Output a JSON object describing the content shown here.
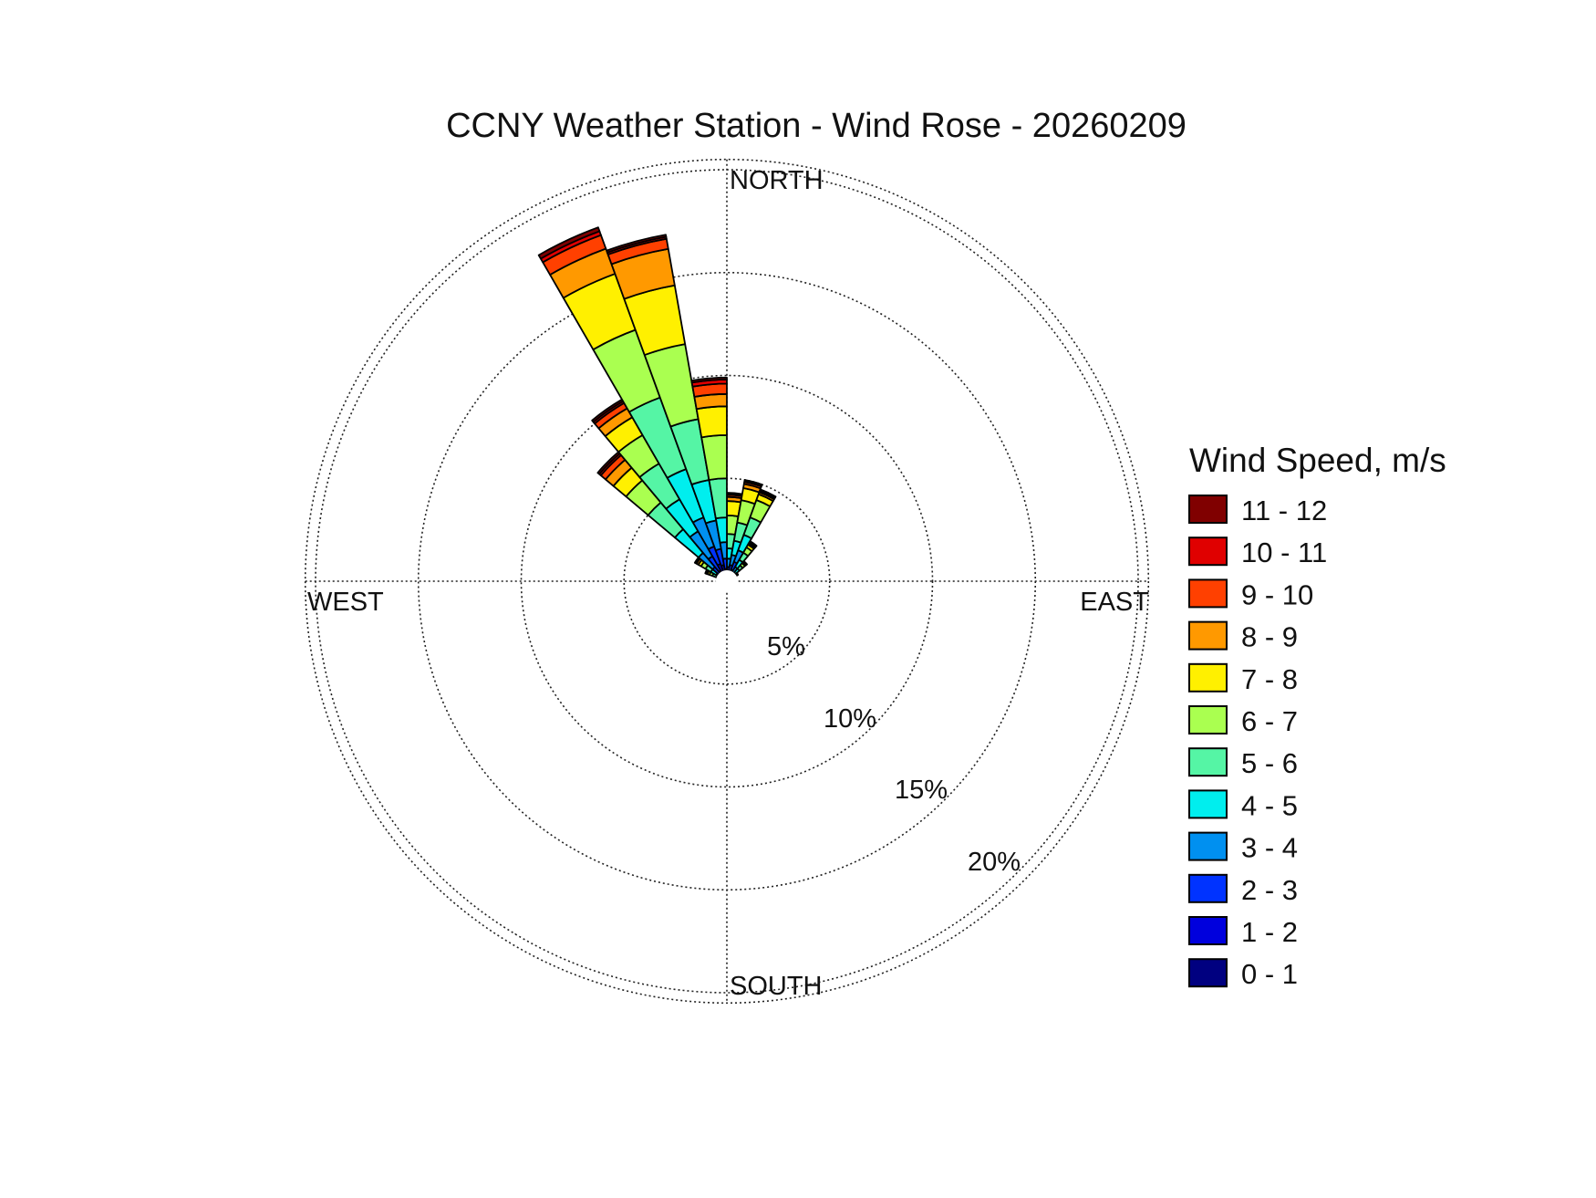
{
  "chart_data": {
    "type": "wind_rose",
    "title": "CCNY Weather Station - Wind Rose - 20260209",
    "direction_labels": [
      "NORTH",
      "EAST",
      "SOUTH",
      "WEST"
    ],
    "radial_ticks": [
      5,
      10,
      15,
      20
    ],
    "radial_tick_labels": [
      "5%",
      "10%",
      "15%",
      "20%"
    ],
    "radial_max": 20.5,
    "legend": {
      "title": "Wind Speed, m/s",
      "placement": "right",
      "bins": [
        {
          "label": "0 - 1",
          "color": "#000080"
        },
        {
          "label": "1 - 2",
          "color": "#0000DD"
        },
        {
          "label": "2 - 3",
          "color": "#0033FF"
        },
        {
          "label": "3 - 4",
          "color": "#0090F0"
        },
        {
          "label": "4 - 5",
          "color": "#00EEEE"
        },
        {
          "label": "5 - 6",
          "color": "#55F5A5"
        },
        {
          "label": "6 - 7",
          "color": "#AAFF50"
        },
        {
          "label": "7 - 8",
          "color": "#FFF000"
        },
        {
          "label": "8 - 9",
          "color": "#FF9900"
        },
        {
          "label": "9 - 10",
          "color": "#FF4000"
        },
        {
          "label": "10 - 11",
          "color": "#E00000"
        },
        {
          "label": "11 - 12",
          "color": "#800000"
        }
      ]
    },
    "sector_width_deg": 10,
    "sectors": [
      {
        "direction_deg": 5,
        "cumulative_pct": [
          0.2,
          0.4,
          0.7,
          1.1,
          1.6,
          2.3,
          3.2,
          3.9,
          4.1,
          4.2,
          4.25,
          4.3
        ]
      },
      {
        "direction_deg": 15,
        "cumulative_pct": [
          0.2,
          0.5,
          0.8,
          1.3,
          2.0,
          2.9,
          4.0,
          4.6,
          4.8,
          4.9,
          4.95,
          5.0
        ]
      },
      {
        "direction_deg": 25,
        "cumulative_pct": [
          0.3,
          0.6,
          1.0,
          1.6,
          2.4,
          3.3,
          4.2,
          4.5,
          4.6,
          4.65,
          4.7,
          4.75
        ]
      },
      {
        "direction_deg": 35,
        "cumulative_pct": [
          0.15,
          0.3,
          0.5,
          0.8,
          1.2,
          1.6,
          1.9,
          2.05,
          2.1,
          2.15,
          2.2,
          2.25
        ]
      },
      {
        "direction_deg": 45,
        "cumulative_pct": [
          0.1,
          0.2,
          0.35,
          0.55,
          0.8,
          1.0,
          1.15,
          1.2,
          1.22,
          1.24,
          1.26,
          1.28
        ]
      },
      {
        "direction_deg": 55,
        "cumulative_pct": [
          0.05,
          0.1,
          0.2,
          0.3,
          0.4,
          0.5,
          0.55,
          0.58,
          0.6,
          0.61,
          0.62,
          0.63
        ]
      },
      {
        "direction_deg": 65,
        "cumulative_pct": [
          0.03,
          0.06,
          0.1,
          0.15,
          0.2,
          0.25,
          0.28,
          0.3,
          0.31,
          0.32,
          0.33,
          0.34
        ]
      },
      {
        "direction_deg": 75,
        "cumulative_pct": [
          0.02,
          0.04,
          0.06,
          0.09,
          0.12,
          0.15,
          0.17,
          0.18,
          0.19,
          0.2,
          0.21,
          0.22
        ]
      },
      {
        "direction_deg": 85,
        "cumulative_pct": [
          0.02,
          0.03,
          0.05,
          0.07,
          0.09,
          0.11,
          0.12,
          0.13,
          0.14,
          0.15,
          0.16,
          0.17
        ]
      },
      {
        "direction_deg": 95,
        "cumulative_pct": [
          0.02,
          0.03,
          0.04,
          0.06,
          0.08,
          0.1,
          0.11,
          0.12,
          0.13,
          0.14,
          0.15,
          0.16
        ]
      },
      {
        "direction_deg": 105,
        "cumulative_pct": [
          0.02,
          0.03,
          0.04,
          0.05,
          0.07,
          0.08,
          0.09,
          0.1,
          0.11,
          0.12,
          0.13,
          0.14
        ]
      },
      {
        "direction_deg": 115,
        "cumulative_pct": [
          0.02,
          0.03,
          0.04,
          0.05,
          0.06,
          0.07,
          0.08,
          0.09,
          0.1,
          0.11,
          0.12,
          0.13
        ]
      },
      {
        "direction_deg": 125,
        "cumulative_pct": [
          0.02,
          0.03,
          0.04,
          0.05,
          0.06,
          0.07,
          0.08,
          0.09,
          0.1,
          0.11,
          0.12,
          0.13
        ]
      },
      {
        "direction_deg": 135,
        "cumulative_pct": [
          0.02,
          0.03,
          0.04,
          0.05,
          0.06,
          0.07,
          0.08,
          0.09,
          0.1,
          0.11,
          0.12,
          0.13
        ]
      },
      {
        "direction_deg": 145,
        "cumulative_pct": [
          0.02,
          0.03,
          0.04,
          0.05,
          0.06,
          0.07,
          0.08,
          0.09,
          0.1,
          0.11,
          0.12,
          0.13
        ]
      },
      {
        "direction_deg": 155,
        "cumulative_pct": [
          0.02,
          0.03,
          0.04,
          0.05,
          0.06,
          0.07,
          0.08,
          0.09,
          0.1,
          0.11,
          0.12,
          0.13
        ]
      },
      {
        "direction_deg": 165,
        "cumulative_pct": [
          0.02,
          0.03,
          0.04,
          0.05,
          0.06,
          0.07,
          0.08,
          0.09,
          0.1,
          0.11,
          0.12,
          0.13
        ]
      },
      {
        "direction_deg": 175,
        "cumulative_pct": [
          0.02,
          0.03,
          0.04,
          0.05,
          0.06,
          0.07,
          0.08,
          0.09,
          0.1,
          0.11,
          0.12,
          0.13
        ]
      },
      {
        "direction_deg": 185,
        "cumulative_pct": [
          0.02,
          0.03,
          0.04,
          0.05,
          0.06,
          0.08,
          0.1,
          0.12,
          0.14,
          0.16,
          0.18,
          0.2
        ]
      },
      {
        "direction_deg": 195,
        "cumulative_pct": [
          0.02,
          0.03,
          0.04,
          0.05,
          0.06,
          0.07,
          0.08,
          0.09,
          0.1,
          0.11,
          0.12,
          0.13
        ]
      },
      {
        "direction_deg": 205,
        "cumulative_pct": [
          0.02,
          0.03,
          0.04,
          0.05,
          0.06,
          0.07,
          0.08,
          0.09,
          0.1,
          0.11,
          0.12,
          0.13
        ]
      },
      {
        "direction_deg": 215,
        "cumulative_pct": [
          0.02,
          0.03,
          0.04,
          0.05,
          0.06,
          0.07,
          0.08,
          0.09,
          0.1,
          0.11,
          0.12,
          0.13
        ]
      },
      {
        "direction_deg": 225,
        "cumulative_pct": [
          0.02,
          0.03,
          0.04,
          0.05,
          0.06,
          0.07,
          0.08,
          0.09,
          0.1,
          0.11,
          0.12,
          0.13
        ]
      },
      {
        "direction_deg": 235,
        "cumulative_pct": [
          0.02,
          0.03,
          0.04,
          0.05,
          0.06,
          0.07,
          0.08,
          0.09,
          0.1,
          0.11,
          0.12,
          0.13
        ]
      },
      {
        "direction_deg": 245,
        "cumulative_pct": [
          0.02,
          0.04,
          0.06,
          0.08,
          0.1,
          0.12,
          0.14,
          0.16,
          0.18,
          0.2,
          0.22,
          0.24
        ]
      },
      {
        "direction_deg": 255,
        "cumulative_pct": [
          0.02,
          0.04,
          0.06,
          0.08,
          0.1,
          0.12,
          0.14,
          0.15,
          0.16,
          0.17,
          0.18,
          0.19
        ]
      },
      {
        "direction_deg": 265,
        "cumulative_pct": [
          0.02,
          0.04,
          0.06,
          0.08,
          0.1,
          0.12,
          0.14,
          0.15,
          0.16,
          0.17,
          0.18,
          0.19
        ]
      },
      {
        "direction_deg": 275,
        "cumulative_pct": [
          0.02,
          0.04,
          0.06,
          0.08,
          0.1,
          0.13,
          0.16,
          0.18,
          0.2,
          0.22,
          0.24,
          0.26
        ]
      },
      {
        "direction_deg": 285,
        "cumulative_pct": [
          0.03,
          0.06,
          0.1,
          0.15,
          0.2,
          0.26,
          0.31,
          0.35,
          0.38,
          0.4,
          0.42,
          0.44
        ]
      },
      {
        "direction_deg": 295,
        "cumulative_pct": [
          0.05,
          0.1,
          0.2,
          0.35,
          0.55,
          0.75,
          0.9,
          1.0,
          1.05,
          1.08,
          1.1,
          1.12
        ]
      },
      {
        "direction_deg": 305,
        "cumulative_pct": [
          0.1,
          0.2,
          0.35,
          0.6,
          0.9,
          1.2,
          1.45,
          1.6,
          1.7,
          1.75,
          1.78,
          1.8
        ]
      },
      {
        "direction_deg": 315,
        "cumulative_pct": [
          0.2,
          0.4,
          0.9,
          1.8,
          3.3,
          5.0,
          6.4,
          7.2,
          7.7,
          8.0,
          8.1,
          8.2
        ]
      },
      {
        "direction_deg": 325,
        "cumulative_pct": [
          0.3,
          0.6,
          1.4,
          2.8,
          4.6,
          6.6,
          8.2,
          9.2,
          9.7,
          10.0,
          10.1,
          10.2
        ]
      },
      {
        "direction_deg": 335,
        "cumulative_pct": [
          0.4,
          0.9,
          1.8,
          3.3,
          5.8,
          9.5,
          13.0,
          15.9,
          17.2,
          17.9,
          18.1,
          18.3
        ]
      },
      {
        "direction_deg": 345,
        "cumulative_pct": [
          0.4,
          0.8,
          1.6,
          3.0,
          5.0,
          8.0,
          11.7,
          14.6,
          16.4,
          16.9,
          17.0,
          17.1
        ]
      },
      {
        "direction_deg": 355,
        "cumulative_pct": [
          0.3,
          0.6,
          1.1,
          1.9,
          3.1,
          5.0,
          7.1,
          8.5,
          9.1,
          9.6,
          9.8,
          9.9
        ]
      }
    ]
  }
}
